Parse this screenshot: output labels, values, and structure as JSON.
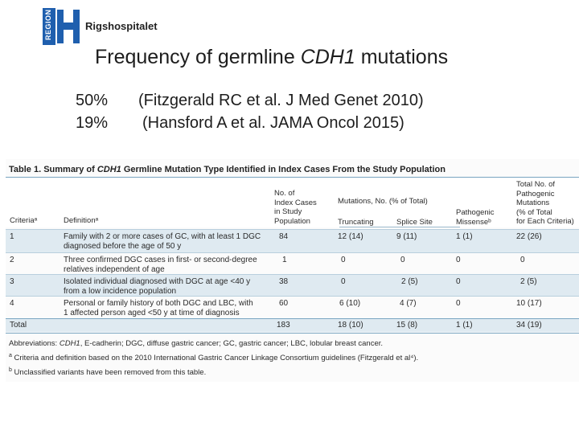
{
  "logo": {
    "region": "REGION",
    "hospital": "Rigshospitalet"
  },
  "slide": {
    "title_pre": "Frequency of germline ",
    "title_gene": "CDH1",
    "title_post": " mutations",
    "refs": [
      {
        "pct": "50%",
        "cite": "(Fitzgerald RC et al. J Med Genet 2010)"
      },
      {
        "pct": "19%",
        "cite": "(Hansford A et al. JAMA Oncol 2015)"
      }
    ]
  },
  "table": {
    "caption_pre": "Table 1. Summary of ",
    "caption_gene": "CDH1",
    "caption_post": " Germline Mutation Type Identified in Index Cases From the Study Population",
    "headers": {
      "criteria": "Criteriaᵃ",
      "definition": "Definitionᵃ",
      "index_cases": "No. of\nIndex Cases\nin Study\nPopulation",
      "mutations": "Mutations, No. (% of Total)",
      "truncating": "Truncating",
      "splice": "Splice Site",
      "missense": "Pathogenic\nMissenseᵇ",
      "total": "Total No. of\nPathogenic\nMutations\n(% of Total\nfor Each Criteria)"
    },
    "rows": [
      {
        "criteria": "1",
        "definition": "Family with 2 or more cases of GC, with at least 1 DGC\ndiagnosed before the age of 50 y",
        "cases": "84",
        "truncating": "12 (14)",
        "splice": "9 (11)",
        "missense": "1 (1)",
        "total": "22 (26)"
      },
      {
        "criteria": "2",
        "definition": "Three confirmed DGC cases in first- or second-degree\nrelatives independent of age",
        "cases": "1",
        "truncating": "0",
        "splice": "0",
        "missense": "0",
        "total": "0"
      },
      {
        "criteria": "3",
        "definition": "Isolated individual diagnosed with DGC at age <40 y\nfrom a low incidence population",
        "cases": "38",
        "truncating": "0",
        "splice": "2 (5)",
        "missense": "0",
        "total": "2 (5)"
      },
      {
        "criteria": "4",
        "definition": "Personal or family history of both DGC and LBC, with\n1 affected person aged <50 y at time of diagnosis",
        "cases": "60",
        "truncating": "6 (10)",
        "splice": "4 (7)",
        "missense": "0",
        "total": "10 (17)"
      },
      {
        "criteria": "Total",
        "definition": "",
        "cases": "183",
        "truncating": "18 (10)",
        "splice": "15 (8)",
        "missense": "1 (1)",
        "total": "34 (19)"
      }
    ],
    "notes": {
      "abbrev_pre": "Abbreviations: ",
      "abbrev_gene": "CDH1",
      "abbrev_post": ", E-cadherin; DGC, diffuse gastric cancer; GC, gastric cancer; LBC, lobular breast cancer.",
      "note_a_mark": "a",
      "note_a": " Criteria and definition based on the 2010 International Gastric Cancer Linkage Consortium guidelines (Fitzgerald et al⁴).",
      "note_b_mark": "b",
      "note_b": " Unclassified variants have been removed from this table."
    }
  }
}
